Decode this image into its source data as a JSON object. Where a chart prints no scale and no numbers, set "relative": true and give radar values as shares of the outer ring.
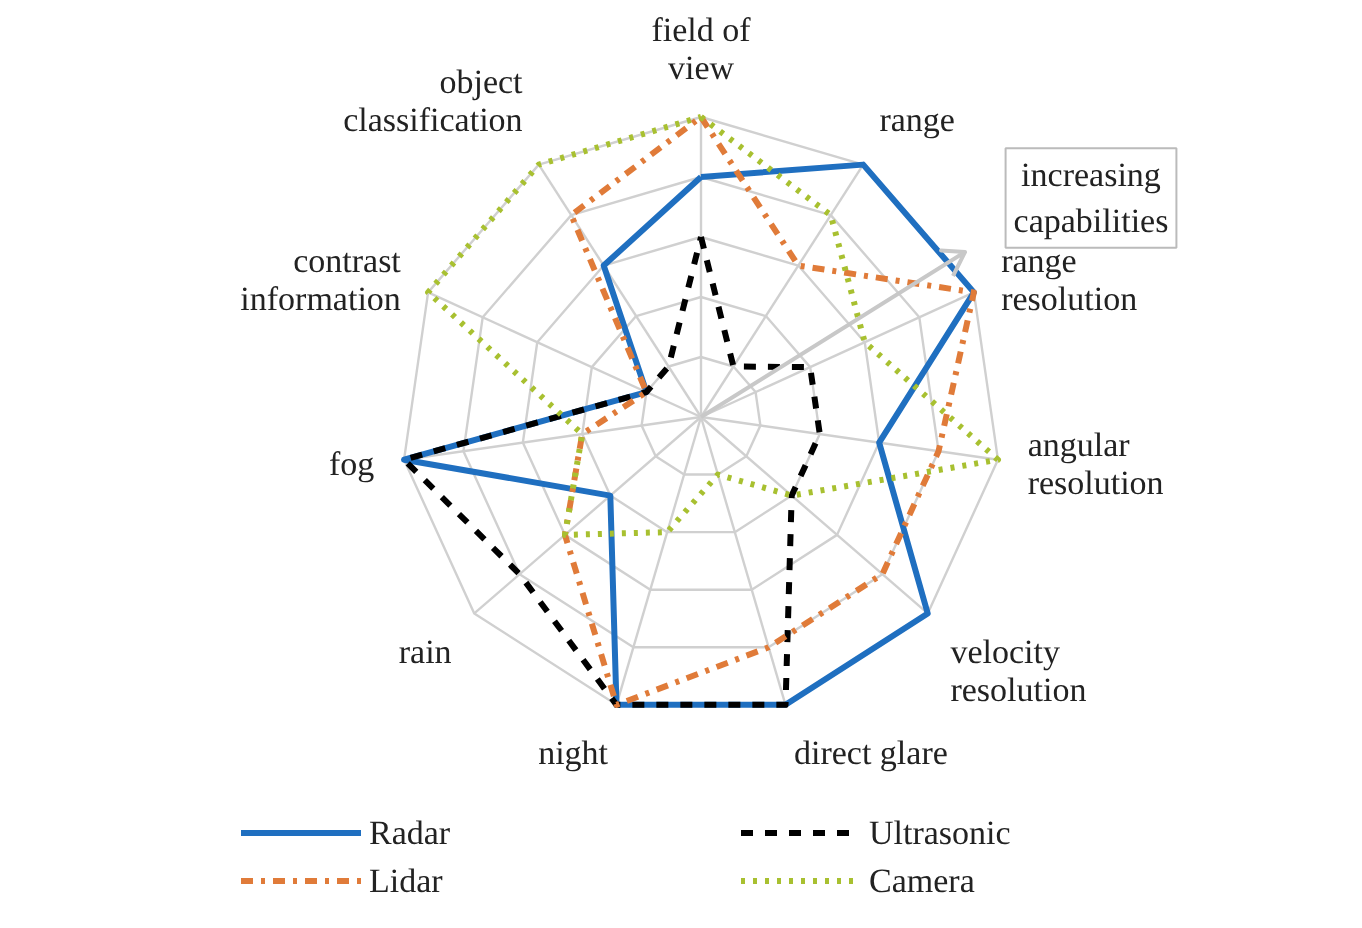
{
  "chart_data": {
    "type": "radar",
    "relative": true,
    "categories": [
      "field of\nview",
      "range",
      "range\nresolution",
      "angular\nresolution",
      "velocity\nresolution",
      "direct glare",
      "night",
      "rain",
      "fog",
      "contrast\ninformation",
      "object\nclassification"
    ],
    "series": [
      {
        "name": "Radar",
        "color": "#1f6fc0",
        "line_style": "solid",
        "values": [
          0.8,
          1.0,
          1.0,
          0.6,
          1.0,
          1.0,
          1.0,
          0.4,
          1.0,
          0.2,
          0.6
        ]
      },
      {
        "name": "Ultrasonic",
        "color": "#000000",
        "line_style": "dashed",
        "values": [
          0.6,
          0.2,
          0.4,
          0.4,
          0.4,
          1.0,
          1.0,
          0.8,
          1.0,
          0.2,
          0.2
        ]
      },
      {
        "name": "Lidar",
        "color": "#e07b39",
        "line_style": "dashdot",
        "values": [
          1.0,
          0.6,
          1.0,
          0.8,
          0.8,
          0.8,
          1.0,
          0.6,
          0.4,
          0.2,
          0.8
        ]
      },
      {
        "name": "Camera",
        "color": "#a8c030",
        "line_style": "dotted",
        "values": [
          1.0,
          0.8,
          0.6,
          1.0,
          0.4,
          0.2,
          0.4,
          0.6,
          0.4,
          1.0,
          1.0
        ]
      }
    ],
    "annotations": [
      "increasing\ncapabilities"
    ],
    "legend": "bottom"
  }
}
